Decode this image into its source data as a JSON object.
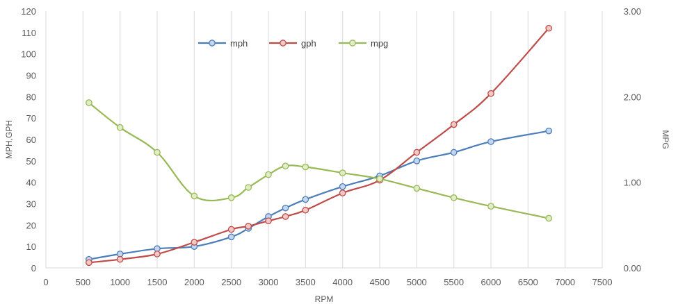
{
  "chart_data": {
    "type": "line",
    "title": "",
    "xlabel": "RPM",
    "ylabel": "MPH,GPH",
    "y2label": "MPG",
    "xlim": [
      0,
      7500
    ],
    "ylim": [
      0,
      120
    ],
    "y2lim": [
      0,
      3
    ],
    "x_ticks": [
      "0",
      "500",
      "1000",
      "1500",
      "2000",
      "2500",
      "3000",
      "3500",
      "4000",
      "4500",
      "5000",
      "5500",
      "6000",
      "6500",
      "7000",
      "7500"
    ],
    "y_ticks": [
      "0",
      "10",
      "20",
      "30",
      "40",
      "50",
      "60",
      "70",
      "80",
      "90",
      "100",
      "110",
      "120"
    ],
    "y2_ticks": [
      "0.00",
      "1.00",
      "2.00",
      "3.00"
    ],
    "grid": "vertical",
    "legend_position": "top-center",
    "series": [
      {
        "name": "mph",
        "axis": "left",
        "color": "#4a7ebb",
        "marker_fill": "#c5d5ee",
        "x": [
          580,
          1000,
          1500,
          2000,
          2500,
          2730,
          3000,
          3230,
          3500,
          4000,
          4500,
          5000,
          5500,
          6000,
          6780
        ],
        "values": [
          4,
          6.5,
          9,
          10,
          14.5,
          18.5,
          24,
          28,
          32,
          38,
          43,
          50,
          54,
          59,
          64
        ]
      },
      {
        "name": "gph",
        "axis": "left",
        "color": "#be4b48",
        "marker_fill": "#f0c8c6",
        "x": [
          580,
          1000,
          1500,
          2000,
          2500,
          2730,
          3000,
          3230,
          3500,
          4000,
          4500,
          5000,
          5500,
          6000,
          6780
        ],
        "values": [
          2.5,
          4,
          6.5,
          12,
          18,
          19.5,
          22,
          24,
          27,
          35,
          41,
          54,
          67,
          81.5,
          112
        ]
      },
      {
        "name": "mpg",
        "axis": "right",
        "color": "#98b954",
        "marker_fill": "#e1edc8",
        "x": [
          580,
          1000,
          1500,
          2000,
          2500,
          2730,
          3000,
          3230,
          3500,
          4000,
          4500,
          5000,
          5500,
          6000,
          6780
        ],
        "values": [
          1.93,
          1.64,
          1.35,
          0.84,
          0.82,
          0.94,
          1.09,
          1.19,
          1.18,
          1.11,
          1.04,
          0.93,
          0.82,
          0.72,
          0.58
        ]
      }
    ]
  }
}
